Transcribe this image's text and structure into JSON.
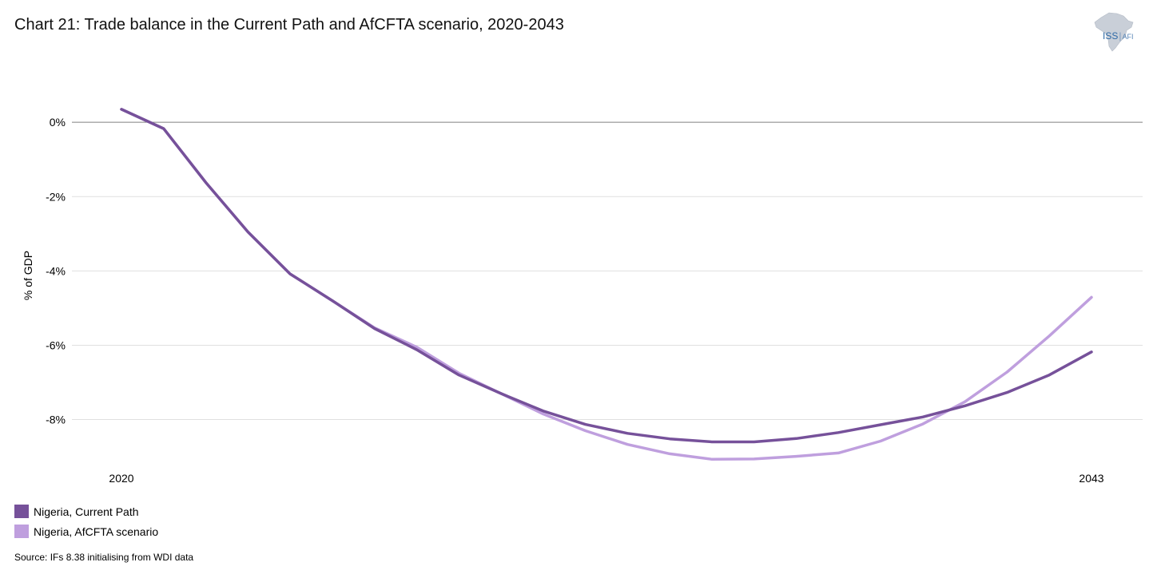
{
  "title": "Chart 21: Trade balance in the Current Path and AfCFTA scenario, 2020-2043",
  "logo": {
    "main": "ISS",
    "suffix": "AFI"
  },
  "source": "Source: IFs 8.38 initialising from WDI data",
  "colors": {
    "current_path": "#76519a",
    "afcfta": "#bf9fde",
    "grid": "#e0e0e0",
    "zero_line": "#808080"
  },
  "chart_data": {
    "type": "line",
    "title": "Chart 21: Trade balance in the Current Path and AfCFTA scenario, 2020-2043",
    "xlabel": "",
    "ylabel": "% of GDP",
    "x": [
      2020,
      2021,
      2022,
      2023,
      2024,
      2025,
      2026,
      2027,
      2028,
      2029,
      2030,
      2031,
      2032,
      2033,
      2034,
      2035,
      2036,
      2037,
      2038,
      2039,
      2040,
      2041,
      2042,
      2043
    ],
    "xticks": [
      "2020",
      "2043"
    ],
    "yticks": [
      "0%",
      "-2%",
      "-4%",
      "-6%",
      "-8%"
    ],
    "ytick_values": [
      0,
      -2,
      -4,
      -6,
      -8
    ],
    "ylim": [
      -9.6,
      1.25
    ],
    "grid": true,
    "legend_position": "bottom-left",
    "series": [
      {
        "name": "Nigeria, Current Path",
        "color": "#76519a",
        "values": [
          0.35,
          -0.17,
          -1.62,
          -2.95,
          -4.08,
          -4.8,
          -5.55,
          -6.12,
          -6.8,
          -7.3,
          -7.77,
          -8.13,
          -8.37,
          -8.52,
          -8.6,
          -8.6,
          -8.51,
          -8.35,
          -8.14,
          -7.93,
          -7.63,
          -7.27,
          -6.8,
          -6.18
        ]
      },
      {
        "name": "Nigeria, AfCFTA scenario",
        "color": "#bf9fde",
        "values": [
          0.35,
          -0.17,
          -1.62,
          -2.95,
          -4.08,
          -4.8,
          -5.53,
          -6.05,
          -6.75,
          -7.3,
          -7.85,
          -8.3,
          -8.67,
          -8.92,
          -9.07,
          -9.06,
          -8.99,
          -8.9,
          -8.58,
          -8.12,
          -7.52,
          -6.72,
          -5.75,
          -4.71
        ]
      }
    ]
  }
}
